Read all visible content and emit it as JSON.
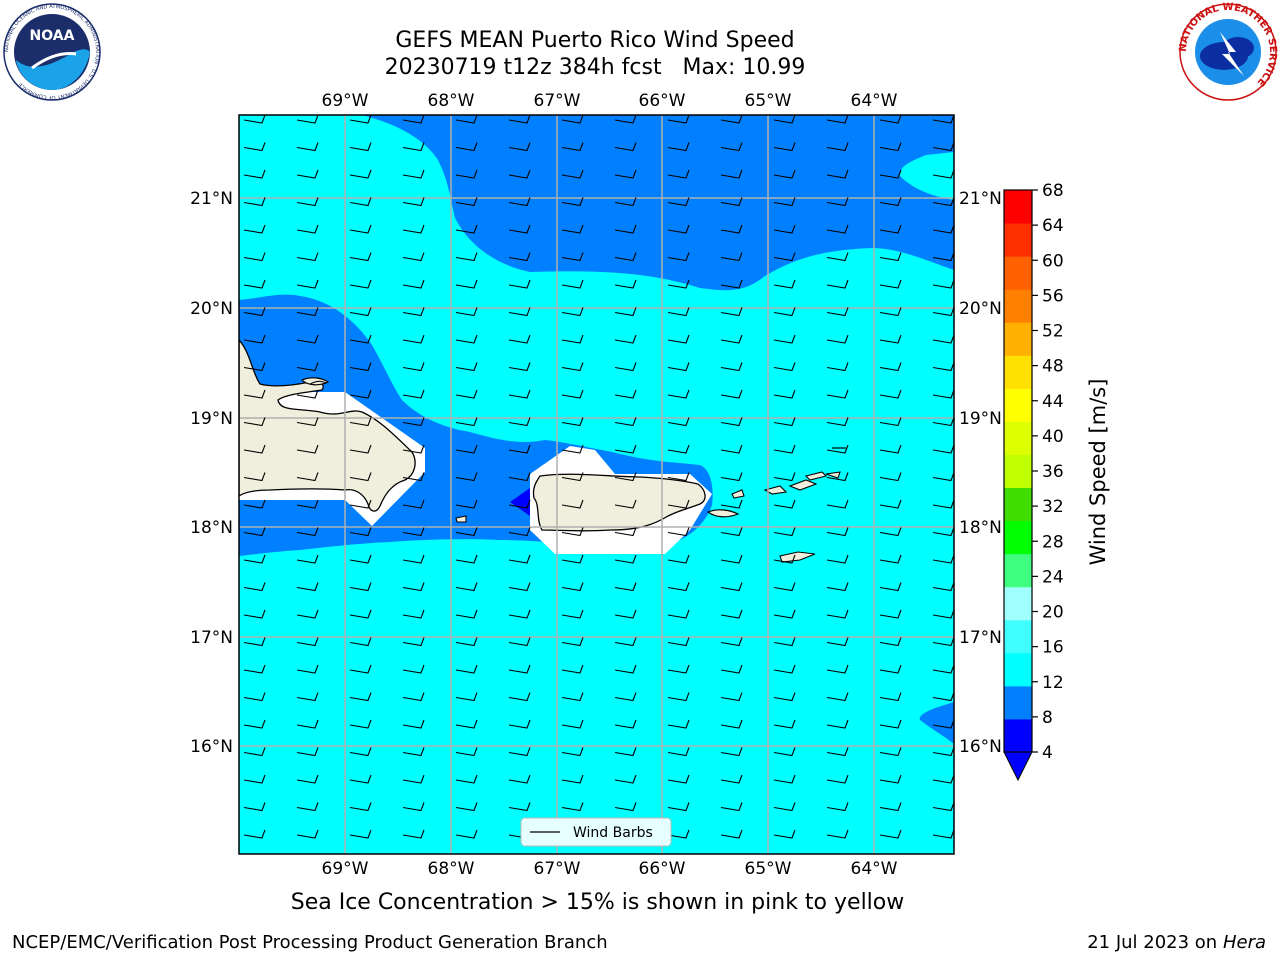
{
  "title_line1": "GEFS MEAN Puerto Rico Wind Speed",
  "title_line2": "20230719 t12z 384h fcst   Max: 10.99",
  "caption": "Sea Ice Concentration > 15% is shown in pink to yellow",
  "footer_left": "NCEP/EMC/Verification Post Processing Product Generation Branch",
  "footer_date": "21 Jul 2023 on ",
  "footer_host": "Hera",
  "logo_left": "NOAA",
  "logo_left_ring": "NATIONAL OCEANIC AND ATMOSPHERIC ADMINISTRATION · U.S. DEPARTMENT OF COMMERCE",
  "logo_right_ring": "NATIONAL WEATHER SERVICE",
  "legend_label": "Wind Barbs",
  "colorbar_label": "Wind Speed [m/s]",
  "lon_labels": [
    "69°W",
    "68°W",
    "67°W",
    "66°W",
    "65°W",
    "64°W"
  ],
  "lat_labels": [
    "21°N",
    "20°N",
    "19°N",
    "18°N",
    "17°N",
    "16°N"
  ],
  "colorbar_ticks": [
    "68",
    "64",
    "60",
    "56",
    "52",
    "48",
    "44",
    "40",
    "36",
    "32",
    "28",
    "24",
    "20",
    "16",
    "12",
    "8",
    "4"
  ],
  "colorbar_colors": [
    "#0000ff",
    "#0080ff",
    "#00ffff",
    "#40ffff",
    "#a0ffff",
    "#40ff80",
    "#00ff00",
    "#40dd00",
    "#c0ff00",
    "#ddff00",
    "#ffff00",
    "#ffe000",
    "#ffb000",
    "#ff8000",
    "#ff6000",
    "#ff3000",
    "#ff0000"
  ],
  "colors": {
    "ocean_light": "#00ffff",
    "ocean_mid": "#0080ff",
    "ocean_dark": "#0000ff",
    "land": "#f0eedc",
    "grid": "#b0b0b0"
  }
}
